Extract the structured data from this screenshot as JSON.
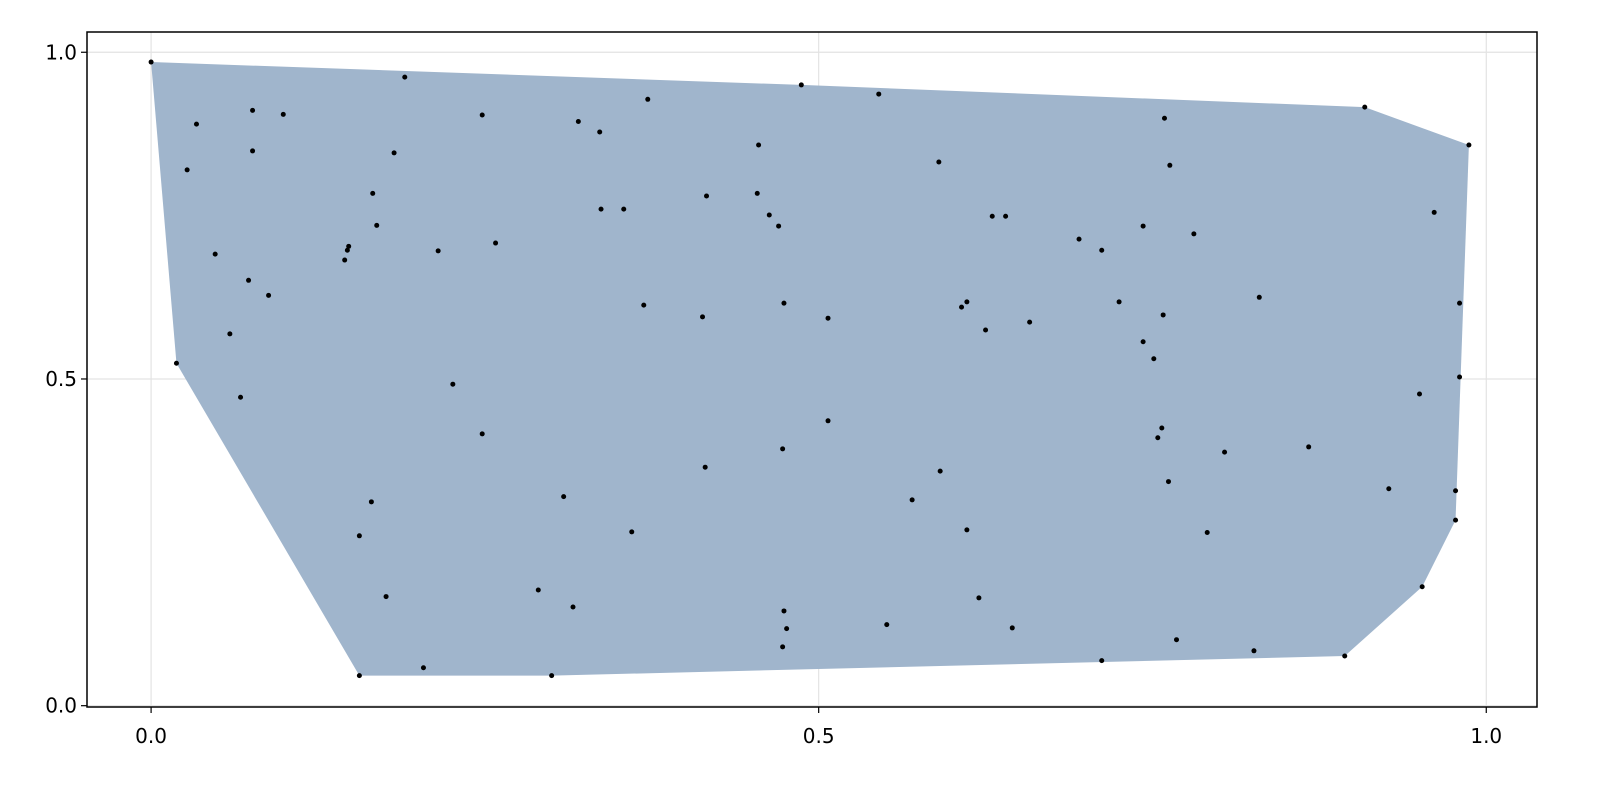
{
  "chart_data": {
    "type": "scatter",
    "title": "",
    "xlabel": "",
    "ylabel": "",
    "xlim": [
      -0.048,
      1.038
    ],
    "ylim": [
      -0.002,
      1.031
    ],
    "xticks": [
      0.0,
      0.5,
      1.0
    ],
    "xtick_labels": [
      "0.0",
      "0.5",
      "1.0"
    ],
    "yticks": [
      0.0,
      0.5,
      1.0
    ],
    "ytick_labels": [
      "0.0",
      "0.5",
      "1.0"
    ],
    "grid": true,
    "hull_fill_color": "#a0b5cc",
    "point_color": "#000000",
    "overlay": "convex hull polygon of points",
    "points": [
      [
        0.0,
        0.985
      ],
      [
        0.019,
        0.524
      ],
      [
        0.027,
        0.82
      ],
      [
        0.034,
        0.89
      ],
      [
        0.048,
        0.691
      ],
      [
        0.059,
        0.569
      ],
      [
        0.067,
        0.472
      ],
      [
        0.073,
        0.651
      ],
      [
        0.076,
        0.911
      ],
      [
        0.076,
        0.849
      ],
      [
        0.088,
        0.628
      ],
      [
        0.099,
        0.905
      ],
      [
        0.145,
        0.682
      ],
      [
        0.147,
        0.697
      ],
      [
        0.148,
        0.703
      ],
      [
        0.156,
        0.26
      ],
      [
        0.156,
        0.046
      ],
      [
        0.165,
        0.312
      ],
      [
        0.166,
        0.784
      ],
      [
        0.169,
        0.735
      ],
      [
        0.176,
        0.167
      ],
      [
        0.182,
        0.846
      ],
      [
        0.19,
        0.962
      ],
      [
        0.204,
        0.058
      ],
      [
        0.215,
        0.696
      ],
      [
        0.226,
        0.492
      ],
      [
        0.248,
        0.904
      ],
      [
        0.248,
        0.416
      ],
      [
        0.258,
        0.708
      ],
      [
        0.29,
        0.177
      ],
      [
        0.3,
        0.046
      ],
      [
        0.309,
        0.32
      ],
      [
        0.316,
        0.151
      ],
      [
        0.32,
        0.894
      ],
      [
        0.336,
        0.878
      ],
      [
        0.337,
        0.76
      ],
      [
        0.354,
        0.76
      ],
      [
        0.36,
        0.266
      ],
      [
        0.369,
        0.613
      ],
      [
        0.372,
        0.928
      ],
      [
        0.413,
        0.595
      ],
      [
        0.415,
        0.365
      ],
      [
        0.416,
        0.78
      ],
      [
        0.454,
        0.784
      ],
      [
        0.455,
        0.858
      ],
      [
        0.463,
        0.751
      ],
      [
        0.47,
        0.734
      ],
      [
        0.473,
        0.393
      ],
      [
        0.473,
        0.09
      ],
      [
        0.474,
        0.616
      ],
      [
        0.474,
        0.145
      ],
      [
        0.476,
        0.118
      ],
      [
        0.487,
        0.95
      ],
      [
        0.507,
        0.593
      ],
      [
        0.507,
        0.436
      ],
      [
        0.545,
        0.936
      ],
      [
        0.551,
        0.124
      ],
      [
        0.57,
        0.315
      ],
      [
        0.59,
        0.832
      ],
      [
        0.591,
        0.359
      ],
      [
        0.607,
        0.61
      ],
      [
        0.611,
        0.618
      ],
      [
        0.611,
        0.269
      ],
      [
        0.62,
        0.165
      ],
      [
        0.625,
        0.575
      ],
      [
        0.63,
        0.749
      ],
      [
        0.64,
        0.749
      ],
      [
        0.645,
        0.119
      ],
      [
        0.658,
        0.587
      ],
      [
        0.695,
        0.714
      ],
      [
        0.712,
        0.069
      ],
      [
        0.712,
        0.697
      ],
      [
        0.725,
        0.618
      ],
      [
        0.743,
        0.734
      ],
      [
        0.743,
        0.557
      ],
      [
        0.751,
        0.531
      ],
      [
        0.754,
        0.41
      ],
      [
        0.757,
        0.425
      ],
      [
        0.758,
        0.598
      ],
      [
        0.759,
        0.899
      ],
      [
        0.762,
        0.343
      ],
      [
        0.763,
        0.827
      ],
      [
        0.768,
        0.101
      ],
      [
        0.781,
        0.722
      ],
      [
        0.791,
        0.265
      ],
      [
        0.804,
        0.388
      ],
      [
        0.826,
        0.084
      ],
      [
        0.83,
        0.625
      ],
      [
        0.867,
        0.396
      ],
      [
        0.894,
        0.076
      ],
      [
        0.909,
        0.916
      ],
      [
        0.927,
        0.332
      ],
      [
        0.95,
        0.477
      ],
      [
        0.952,
        0.182
      ],
      [
        0.961,
        0.755
      ],
      [
        0.977,
        0.329
      ],
      [
        0.977,
        0.284
      ],
      [
        0.98,
        0.503
      ],
      [
        0.98,
        0.616
      ],
      [
        0.987,
        0.858
      ]
    ]
  }
}
